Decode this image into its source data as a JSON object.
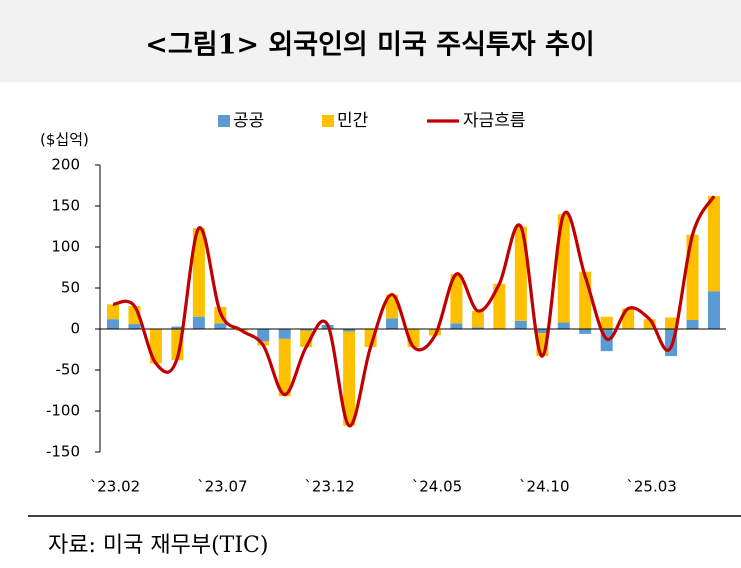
{
  "chart_data": {
    "type": "bar",
    "title": "<그림1> 외국인의 미국 주식투자 추이",
    "y_label": "($십억)",
    "source": "자료: 미국 재무부(TIC)",
    "categories": [
      "`23.02",
      null,
      null,
      null,
      null,
      "`23.07",
      null,
      null,
      null,
      null,
      "`23.12",
      null,
      null,
      null,
      null,
      "`24.05",
      null,
      null,
      null,
      null,
      "`24.10",
      null,
      null,
      null,
      null,
      "`25.03",
      null,
      null,
      null
    ],
    "series": [
      {
        "name": "공공",
        "type": "bar",
        "color": "#5b9bd5",
        "values": [
          12,
          6,
          0,
          3,
          15,
          7,
          0,
          -15,
          -12,
          -2,
          5,
          -3,
          0,
          13,
          0,
          0,
          7,
          2,
          0,
          10,
          -5,
          8,
          -6,
          -27,
          0,
          0,
          -33,
          11,
          46
        ]
      },
      {
        "name": "민간",
        "type": "bar",
        "color": "#ffc000",
        "values": [
          18,
          22,
          -42,
          -38,
          108,
          20,
          -2,
          -5,
          -70,
          -20,
          0,
          -115,
          -22,
          29,
          -22,
          -8,
          60,
          20,
          55,
          115,
          -28,
          132,
          70,
          15,
          25,
          12,
          14,
          104,
          116
        ]
      },
      {
        "name": "자금흐름",
        "type": "line",
        "color": "#c00000",
        "values": [
          30,
          28,
          -42,
          -35,
          123,
          20,
          -2,
          -20,
          -80,
          -22,
          5,
          -118,
          -22,
          42,
          -22,
          -8,
          67,
          22,
          55,
          125,
          -33,
          140,
          64,
          -12,
          25,
          12,
          -22,
          115,
          162
        ]
      }
    ],
    "ylim": [
      -150,
      200
    ],
    "yticks": [
      -150,
      -100,
      -50,
      0,
      50,
      100,
      150,
      200
    ]
  }
}
